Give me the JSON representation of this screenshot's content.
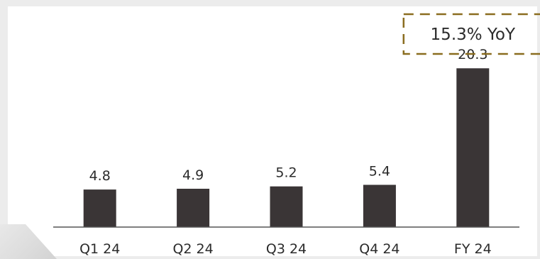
{
  "chart_data": {
    "type": "bar",
    "categories": [
      "Q1 24",
      "Q2 24",
      "Q3 24",
      "Q4 24",
      "FY 24"
    ],
    "values": [
      4.8,
      4.9,
      5.2,
      5.4,
      20.3
    ],
    "value_labels": [
      "4.8",
      "4.9",
      "5.2",
      "5.4",
      "20.3"
    ],
    "title": "",
    "xlabel": "",
    "ylabel": "",
    "ylim": [
      0,
      22.5
    ],
    "grid": false,
    "legend": "none",
    "annotation": {
      "text": "15.3% YoY",
      "target": "FY 24",
      "border_color": "#8a6d1f"
    },
    "colors": {
      "bar": "#3a3536",
      "axis": "#555555"
    }
  }
}
